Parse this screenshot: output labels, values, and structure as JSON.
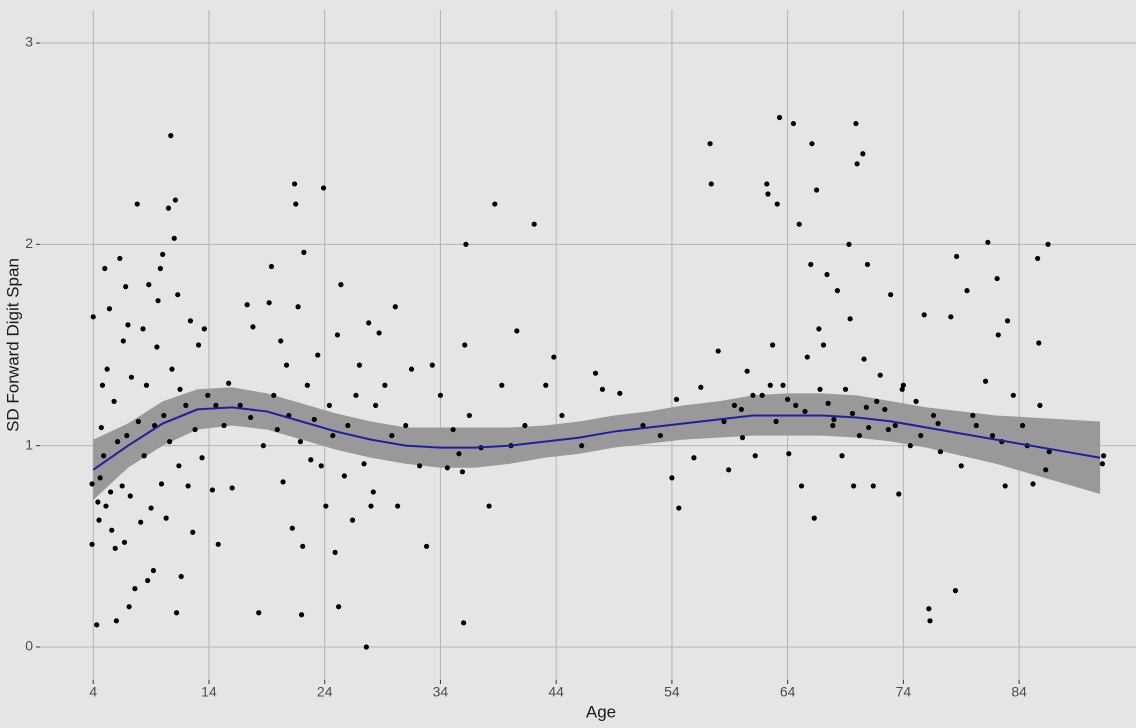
{
  "chart_data": {
    "type": "scatter",
    "x_label": "Age",
    "y_label": "SD Forward Digit Span",
    "xlim": [
      -0.6,
      94.1
    ],
    "ylim": [
      -0.164,
      3.164
    ],
    "xticks": [
      4,
      14,
      24,
      34,
      44,
      54,
      64,
      74,
      84
    ],
    "yticks": [
      0,
      1,
      2,
      3
    ],
    "grid": true,
    "points": {
      "color": "#000000",
      "x": [
        3.9,
        3.9,
        4.0,
        4.3,
        4.4,
        4.5,
        4.6,
        4.7,
        4.8,
        4.9,
        5.0,
        5.1,
        5.2,
        5.4,
        5.5,
        5.6,
        5.8,
        5.9,
        6.0,
        6.1,
        6.3,
        6.5,
        6.6,
        6.7,
        6.8,
        6.9,
        7.0,
        7.1,
        7.2,
        7.3,
        7.6,
        7.8,
        7.9,
        8.1,
        8.3,
        8.4,
        8.6,
        8.7,
        8.8,
        9.0,
        9.2,
        9.3,
        9.5,
        9.6,
        9.8,
        9.9,
        10.0,
        10.1,
        10.3,
        10.5,
        10.6,
        10.7,
        10.8,
        11.0,
        11.1,
        11.2,
        11.3,
        11.4,
        11.5,
        11.6,
        12.0,
        12.2,
        12.4,
        12.6,
        12.8,
        13.1,
        13.4,
        13.6,
        13.9,
        14.3,
        14.6,
        14.8,
        15.3,
        15.7,
        16.0,
        16.7,
        17.3,
        17.6,
        17.8,
        18.3,
        18.7,
        19.2,
        19.4,
        19.6,
        19.9,
        20.2,
        20.4,
        20.7,
        20.9,
        21.2,
        21.4,
        21.5,
        21.7,
        21.9,
        22.0,
        22.1,
        22.2,
        22.5,
        22.8,
        23.1,
        23.4,
        23.7,
        23.9,
        24.1,
        24.4,
        24.7,
        24.9,
        25.1,
        25.2,
        25.4,
        25.7,
        26.0,
        26.4,
        26.7,
        27.0,
        27.4,
        27.6,
        27.8,
        28.0,
        28.2,
        28.4,
        28.7,
        29.2,
        29.8,
        30.1,
        30.3,
        31.0,
        31.5,
        32.2,
        32.8,
        33.3,
        34.0,
        34.6,
        35.1,
        35.6,
        35.9,
        36.0,
        36.1,
        36.2,
        36.5,
        37.5,
        38.2,
        38.7,
        39.3,
        40.1,
        40.6,
        41.3,
        42.1,
        43.1,
        43.8,
        44.5,
        46.2,
        47.4,
        48.0,
        49.5,
        51.5,
        53.0,
        54.0,
        54.4,
        54.6,
        55.9,
        56.5,
        57.3,
        57.4,
        58.0,
        58.9,
        59.4,
        60.1,
        60.5,
        61.2,
        61.8,
        62.2,
        62.3,
        62.7,
        63.1,
        63.3,
        63.6,
        64.1,
        64.5,
        64.7,
        65.0,
        65.2,
        65.7,
        66.0,
        66.1,
        66.3,
        66.5,
        66.7,
        67.1,
        67.4,
        67.9,
        68.3,
        68.7,
        69.0,
        69.3,
        69.4,
        69.7,
        69.9,
        70.0,
        70.2,
        70.5,
        70.6,
        70.9,
        71.4,
        72.0,
        72.4,
        72.9,
        73.3,
        73.6,
        74.0,
        74.6,
        75.1,
        75.8,
        76.2,
        76.3,
        76.6,
        77.2,
        78.1,
        78.5,
        78.6,
        79.0,
        79.5,
        80.3,
        81.1,
        81.3,
        81.7,
        82.1,
        82.2,
        82.8,
        83.0,
        83.5,
        84.3,
        84.7,
        85.2,
        85.6,
        85.7,
        85.8,
        86.3,
        86.5,
        86.6,
        91.2,
        91.3,
        60.0,
        63.0,
        65.5,
        67.5,
        68.0,
        70.8,
        71.7,
        72.7,
        73.9,
        75.5,
        77.0,
        80.0,
        82.5,
        66.8,
        69.6,
        71.0,
        64.0,
        61.0,
        58.5,
        62.5
      ],
      "y": [
        0.51,
        0.81,
        1.64,
        0.11,
        0.72,
        0.63,
        0.84,
        1.09,
        1.3,
        0.95,
        1.88,
        0.7,
        1.38,
        1.68,
        0.77,
        0.58,
        1.22,
        0.49,
        0.13,
        1.02,
        1.93,
        0.8,
        1.52,
        0.52,
        1.79,
        1.05,
        1.6,
        0.2,
        0.75,
        1.34,
        0.29,
        2.2,
        1.12,
        0.62,
        1.58,
        0.95,
        1.3,
        0.33,
        1.8,
        0.69,
        0.38,
        1.1,
        1.49,
        1.72,
        1.88,
        0.81,
        1.95,
        1.15,
        0.64,
        2.18,
        1.02,
        2.54,
        1.38,
        2.03,
        2.22,
        0.17,
        1.75,
        0.9,
        1.28,
        0.35,
        1.2,
        0.8,
        1.62,
        0.57,
        1.08,
        1.5,
        0.94,
        1.58,
        1.25,
        0.78,
        1.2,
        0.51,
        1.1,
        1.31,
        0.79,
        1.2,
        1.7,
        1.14,
        1.59,
        0.17,
        1.0,
        1.71,
        1.89,
        1.25,
        1.08,
        1.52,
        0.82,
        1.4,
        1.15,
        0.59,
        2.3,
        2.2,
        1.69,
        1.02,
        0.16,
        0.5,
        1.96,
        1.3,
        0.93,
        1.13,
        1.45,
        0.9,
        2.28,
        0.7,
        1.2,
        1.05,
        0.47,
        1.55,
        0.2,
        1.8,
        0.85,
        1.1,
        0.63,
        1.25,
        1.4,
        0.91,
        0.0,
        1.61,
        0.7,
        0.77,
        1.2,
        1.56,
        1.3,
        1.05,
        1.69,
        0.7,
        1.1,
        1.38,
        0.9,
        0.5,
        1.4,
        1.25,
        0.89,
        1.08,
        0.96,
        0.87,
        0.12,
        1.5,
        2.0,
        1.15,
        0.99,
        0.7,
        2.2,
        1.3,
        1.0,
        1.57,
        1.1,
        2.1,
        1.3,
        1.44,
        1.15,
        1.0,
        1.36,
        1.28,
        1.26,
        1.1,
        1.05,
        0.84,
        1.23,
        0.69,
        0.94,
        1.29,
        2.5,
        2.3,
        1.47,
        0.88,
        1.2,
        1.04,
        1.37,
        0.95,
        1.25,
        2.3,
        2.25,
        1.5,
        2.2,
        2.63,
        1.3,
        0.96,
        2.6,
        1.2,
        2.1,
        0.8,
        1.44,
        1.9,
        2.5,
        0.64,
        2.27,
        1.58,
        1.5,
        1.85,
        1.1,
        1.77,
        0.95,
        1.28,
        2.0,
        1.63,
        0.8,
        2.6,
        2.4,
        1.05,
        2.45,
        1.43,
        1.9,
        0.8,
        1.35,
        1.18,
        1.75,
        1.1,
        0.76,
        1.3,
        1.0,
        1.22,
        1.65,
        0.19,
        0.13,
        1.15,
        0.97,
        1.64,
        0.28,
        1.94,
        0.9,
        1.77,
        1.1,
        1.32,
        2.01,
        1.05,
        1.83,
        1.55,
        0.8,
        1.62,
        1.25,
        1.1,
        1.0,
        0.81,
        1.93,
        1.51,
        1.2,
        0.88,
        2.0,
        0.97,
        0.91,
        0.95,
        1.18,
        1.12,
        1.17,
        1.21,
        1.13,
        1.19,
        1.22,
        1.08,
        1.28,
        1.05,
        1.11,
        1.15,
        1.02,
        1.28,
        1.16,
        1.09,
        1.23,
        1.25,
        1.12,
        1.3
      ]
    },
    "smooth": {
      "color": "#1f1fa0",
      "band_color": "#999999",
      "x": [
        4,
        7,
        10,
        13,
        16,
        19,
        22,
        25,
        28,
        31,
        34,
        37,
        40,
        43,
        46,
        49,
        52,
        55,
        58,
        61,
        64,
        67,
        70,
        73,
        76,
        79,
        82,
        85,
        88,
        91
      ],
      "y": [
        0.88,
        1.0,
        1.11,
        1.18,
        1.19,
        1.17,
        1.12,
        1.07,
        1.03,
        1.0,
        0.99,
        0.99,
        1.0,
        1.02,
        1.04,
        1.07,
        1.09,
        1.11,
        1.13,
        1.15,
        1.15,
        1.15,
        1.14,
        1.12,
        1.09,
        1.06,
        1.03,
        1.0,
        0.97,
        0.94
      ],
      "lower": [
        0.73,
        0.89,
        1.0,
        1.08,
        1.1,
        1.08,
        1.03,
        0.98,
        0.94,
        0.91,
        0.89,
        0.89,
        0.91,
        0.94,
        0.96,
        0.99,
        1.01,
        1.03,
        1.04,
        1.05,
        1.05,
        1.05,
        1.04,
        1.02,
        0.99,
        0.95,
        0.91,
        0.86,
        0.81,
        0.76
      ],
      "upper": [
        1.03,
        1.11,
        1.22,
        1.28,
        1.29,
        1.26,
        1.21,
        1.16,
        1.12,
        1.09,
        1.09,
        1.09,
        1.09,
        1.1,
        1.12,
        1.15,
        1.17,
        1.2,
        1.22,
        1.25,
        1.26,
        1.26,
        1.25,
        1.22,
        1.19,
        1.17,
        1.15,
        1.14,
        1.13,
        1.12
      ]
    }
  }
}
